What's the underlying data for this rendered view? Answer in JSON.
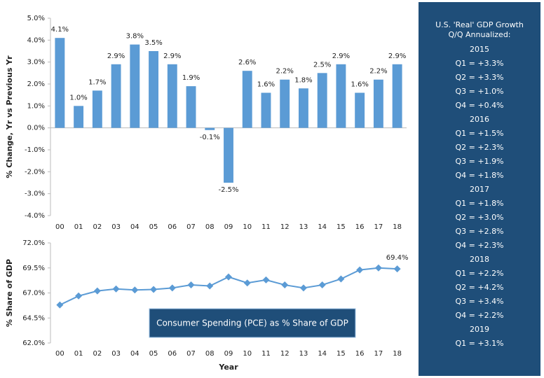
{
  "chart_data": [
    {
      "type": "bar",
      "ylabel": "% Change, Yr vs Previous Yr",
      "color": "#5b9bd5",
      "categories": [
        "00",
        "01",
        "02",
        "03",
        "04",
        "05",
        "06",
        "07",
        "08",
        "09",
        "10",
        "11",
        "12",
        "13",
        "14",
        "15",
        "16",
        "17",
        "18"
      ],
      "values": [
        4.1,
        1.0,
        1.7,
        2.9,
        3.8,
        3.5,
        2.9,
        1.9,
        -0.1,
        -2.5,
        2.6,
        1.6,
        2.2,
        1.8,
        2.5,
        2.9,
        1.6,
        2.2,
        2.9
      ],
      "value_labels": [
        "4.1%",
        "1.0%",
        "1.7%",
        "2.9%",
        "3.8%",
        "3.5%",
        "2.9%",
        "1.9%",
        "-0.1%",
        "-2.5%",
        "2.6%",
        "1.6%",
        "2.2%",
        "1.8%",
        "2.5%",
        "2.9%",
        "1.6%",
        "2.2%",
        "2.9%"
      ],
      "ylim": [
        -4,
        5
      ],
      "yticks": [
        {
          "value": -4,
          "label": "-4.0%"
        },
        {
          "value": -3,
          "label": "-3.0%"
        },
        {
          "value": -2,
          "label": "-2.0%"
        },
        {
          "value": -1,
          "label": "-1.0%"
        },
        {
          "value": 0,
          "label": "0.0%"
        },
        {
          "value": 1,
          "label": "1.0%"
        },
        {
          "value": 2,
          "label": "2.0%"
        },
        {
          "value": 3,
          "label": "3.0%"
        },
        {
          "value": 4,
          "label": "4.0%"
        },
        {
          "value": 5,
          "label": "5.0%"
        }
      ]
    },
    {
      "type": "line",
      "ylabel": "% Share of GDP",
      "xlabel": "Year",
      "color": "#5b9bd5",
      "annotation": "Consumer Spending (PCE) as % Share of GDP",
      "categories": [
        "00",
        "01",
        "02",
        "03",
        "04",
        "05",
        "06",
        "07",
        "08",
        "09",
        "10",
        "11",
        "12",
        "13",
        "14",
        "15",
        "16",
        "17",
        "18"
      ],
      "values": [
        65.8,
        66.7,
        67.2,
        67.4,
        67.3,
        67.35,
        67.5,
        67.8,
        67.7,
        68.6,
        68.0,
        68.3,
        67.8,
        67.5,
        67.8,
        68.4,
        69.3,
        69.5,
        69.4
      ],
      "value_labels": [
        null,
        null,
        null,
        null,
        null,
        null,
        null,
        null,
        null,
        null,
        null,
        null,
        null,
        null,
        null,
        null,
        null,
        null,
        "69.4%"
      ],
      "ylim": [
        62,
        72
      ],
      "yticks": [
        {
          "value": 62,
          "label": "62.0%"
        },
        {
          "value": 64.5,
          "label": "64.5%"
        },
        {
          "value": 67,
          "label": "67.0%"
        },
        {
          "value": 69.5,
          "label": "69.5%"
        },
        {
          "value": 72,
          "label": "72.0%"
        }
      ]
    }
  ],
  "panel": {
    "title": "U.S. 'Real' GDP Growth Q/Q Annualized:",
    "groups": [
      {
        "year": "2015",
        "items": [
          "Q1 = +3.3%",
          "Q2 = +3.3%",
          "Q3 = +1.0%",
          "Q4 = +0.4%"
        ]
      },
      {
        "year": "2016",
        "items": [
          "Q1 = +1.5%",
          "Q2 = +2.3%",
          "Q3 = +1.9%",
          "Q4 = +1.8%"
        ]
      },
      {
        "year": "2017",
        "items": [
          "Q1 = +1.8%",
          "Q2 = +3.0%",
          "Q3 = +2.8%",
          "Q4 = +2.3%"
        ]
      },
      {
        "year": "2018",
        "items": [
          "Q1 = +2.2%",
          "Q2 = +4.2%",
          "Q3 = +3.4%",
          "Q4 = +2.2%"
        ]
      },
      {
        "year": "2019",
        "items": [
          "Q1 = +3.1%"
        ]
      }
    ]
  }
}
